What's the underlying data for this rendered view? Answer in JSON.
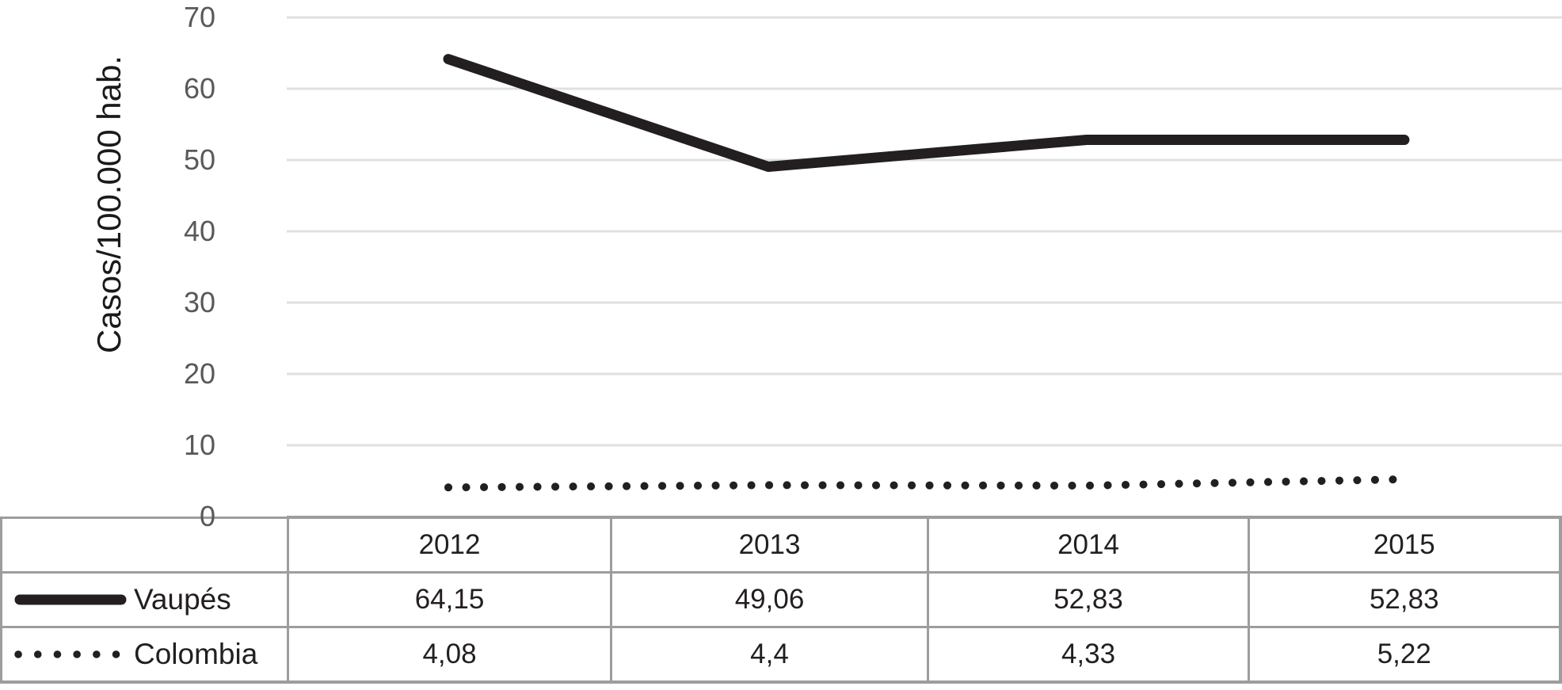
{
  "chart_data": {
    "type": "line",
    "title": "",
    "xlabel": "",
    "ylabel": "Casos/100.000 hab.",
    "categories": [
      "2012",
      "2013",
      "2014",
      "2015"
    ],
    "series": [
      {
        "name": "Vaupés",
        "line_style": "solid",
        "color": "#231f20",
        "values": [
          64.15,
          49.06,
          52.83,
          52.83
        ]
      },
      {
        "name": "Colombia",
        "line_style": "dotted",
        "color": "#231f20",
        "values": [
          4.08,
          4.4,
          4.33,
          5.22
        ]
      }
    ],
    "ylim": [
      0,
      70
    ],
    "yticks": [
      0,
      10,
      20,
      30,
      40,
      50,
      60,
      70
    ],
    "grid": "horizontal-only",
    "legend_position": "table-rows-left"
  },
  "axis": {
    "ylabel": "Casos/100.000 hab.",
    "ytick_labels": [
      "70",
      "60",
      "50",
      "40",
      "30",
      "20",
      "10",
      "0"
    ]
  },
  "table": {
    "years": [
      "2012",
      "2013",
      "2014",
      "2015"
    ],
    "rows": [
      {
        "label": "Vaupés",
        "icon": "vaupes-solid-line-icon",
        "values": [
          "64,15",
          "49,06",
          "52,83",
          "52,83"
        ]
      },
      {
        "label": "Colombia",
        "icon": "colombia-dotted-line-icon",
        "values": [
          "4,08",
          "4,4",
          "4,33",
          "5,22"
        ]
      }
    ]
  },
  "colors": {
    "series": "#231f20",
    "gridline": "#e0e0e0",
    "table_border": "#9d9d9d",
    "tick_label": "#595959",
    "axis_title": "#1a1a1a"
  }
}
